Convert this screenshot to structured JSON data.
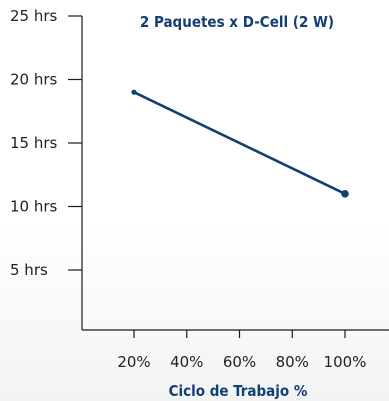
{
  "chart_data": {
    "type": "line",
    "title": "2 Paquetes x D-Cell (2 W)",
    "xlabel": "Ciclo de Trabajo %",
    "ylabel": "",
    "x_tick_labels": [
      "20%",
      "40%",
      "60%",
      "80%",
      "100%"
    ],
    "y_tick_labels": [
      "5 hrs",
      "10 hrs",
      "15 hrs",
      "20 hrs",
      "25 hrs"
    ],
    "x_ticks": [
      20,
      40,
      60,
      80,
      100
    ],
    "y_ticks": [
      5,
      10,
      15,
      20,
      25
    ],
    "xlim": [
      0,
      110
    ],
    "ylim": [
      0,
      25
    ],
    "series": [
      {
        "x": [
          20,
          100
        ],
        "values": [
          19,
          11
        ],
        "color": "#143f72"
      }
    ],
    "grid": false,
    "legend": "none"
  }
}
